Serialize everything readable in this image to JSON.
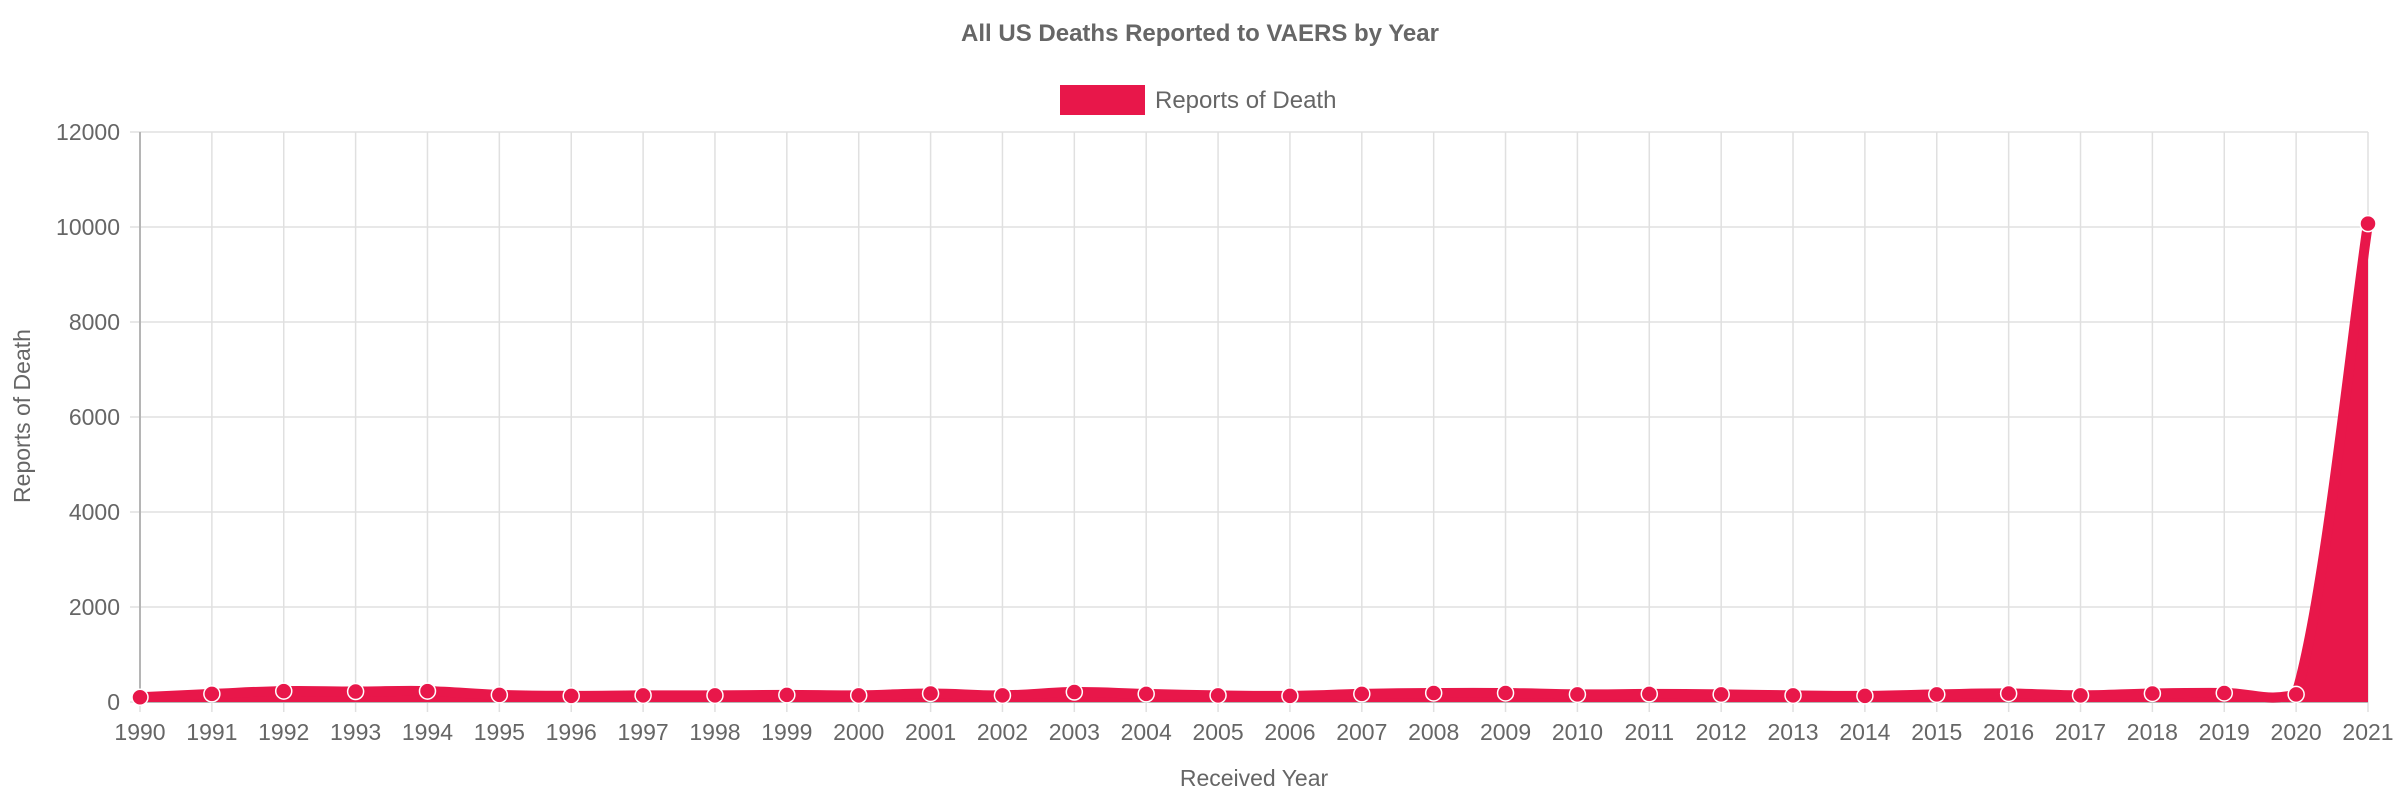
{
  "colors": {
    "series": "#e8174a",
    "grid": "#e0e0e0",
    "axis": "#b5b5b5",
    "text": "#666666"
  },
  "chart_data": {
    "type": "area",
    "title": "All US Deaths Reported to VAERS by Year",
    "xlabel": "Received Year",
    "ylabel": "Reports of Death",
    "legend": {
      "position": "top-center",
      "entries": [
        "Reports of Death"
      ]
    },
    "grid": true,
    "ylim": [
      0,
      12000
    ],
    "yticks": [
      0,
      2000,
      4000,
      6000,
      8000,
      10000,
      12000
    ],
    "categories": [
      "1990",
      "1991",
      "1992",
      "1993",
      "1994",
      "1995",
      "1996",
      "1997",
      "1998",
      "1999",
      "2000",
      "2001",
      "2002",
      "2003",
      "2004",
      "2005",
      "2006",
      "2007",
      "2008",
      "2009",
      "2010",
      "2011",
      "2012",
      "2013",
      "2014",
      "2015",
      "2016",
      "2017",
      "2018",
      "2019",
      "2020",
      "2021"
    ],
    "series": [
      {
        "name": "Reports of Death",
        "values": [
          100,
          170,
          230,
          220,
          230,
          150,
          130,
          140,
          140,
          150,
          140,
          180,
          140,
          210,
          170,
          140,
          130,
          170,
          190,
          190,
          160,
          170,
          160,
          140,
          130,
          160,
          180,
          140,
          180,
          190,
          160,
          10070
        ]
      }
    ]
  }
}
